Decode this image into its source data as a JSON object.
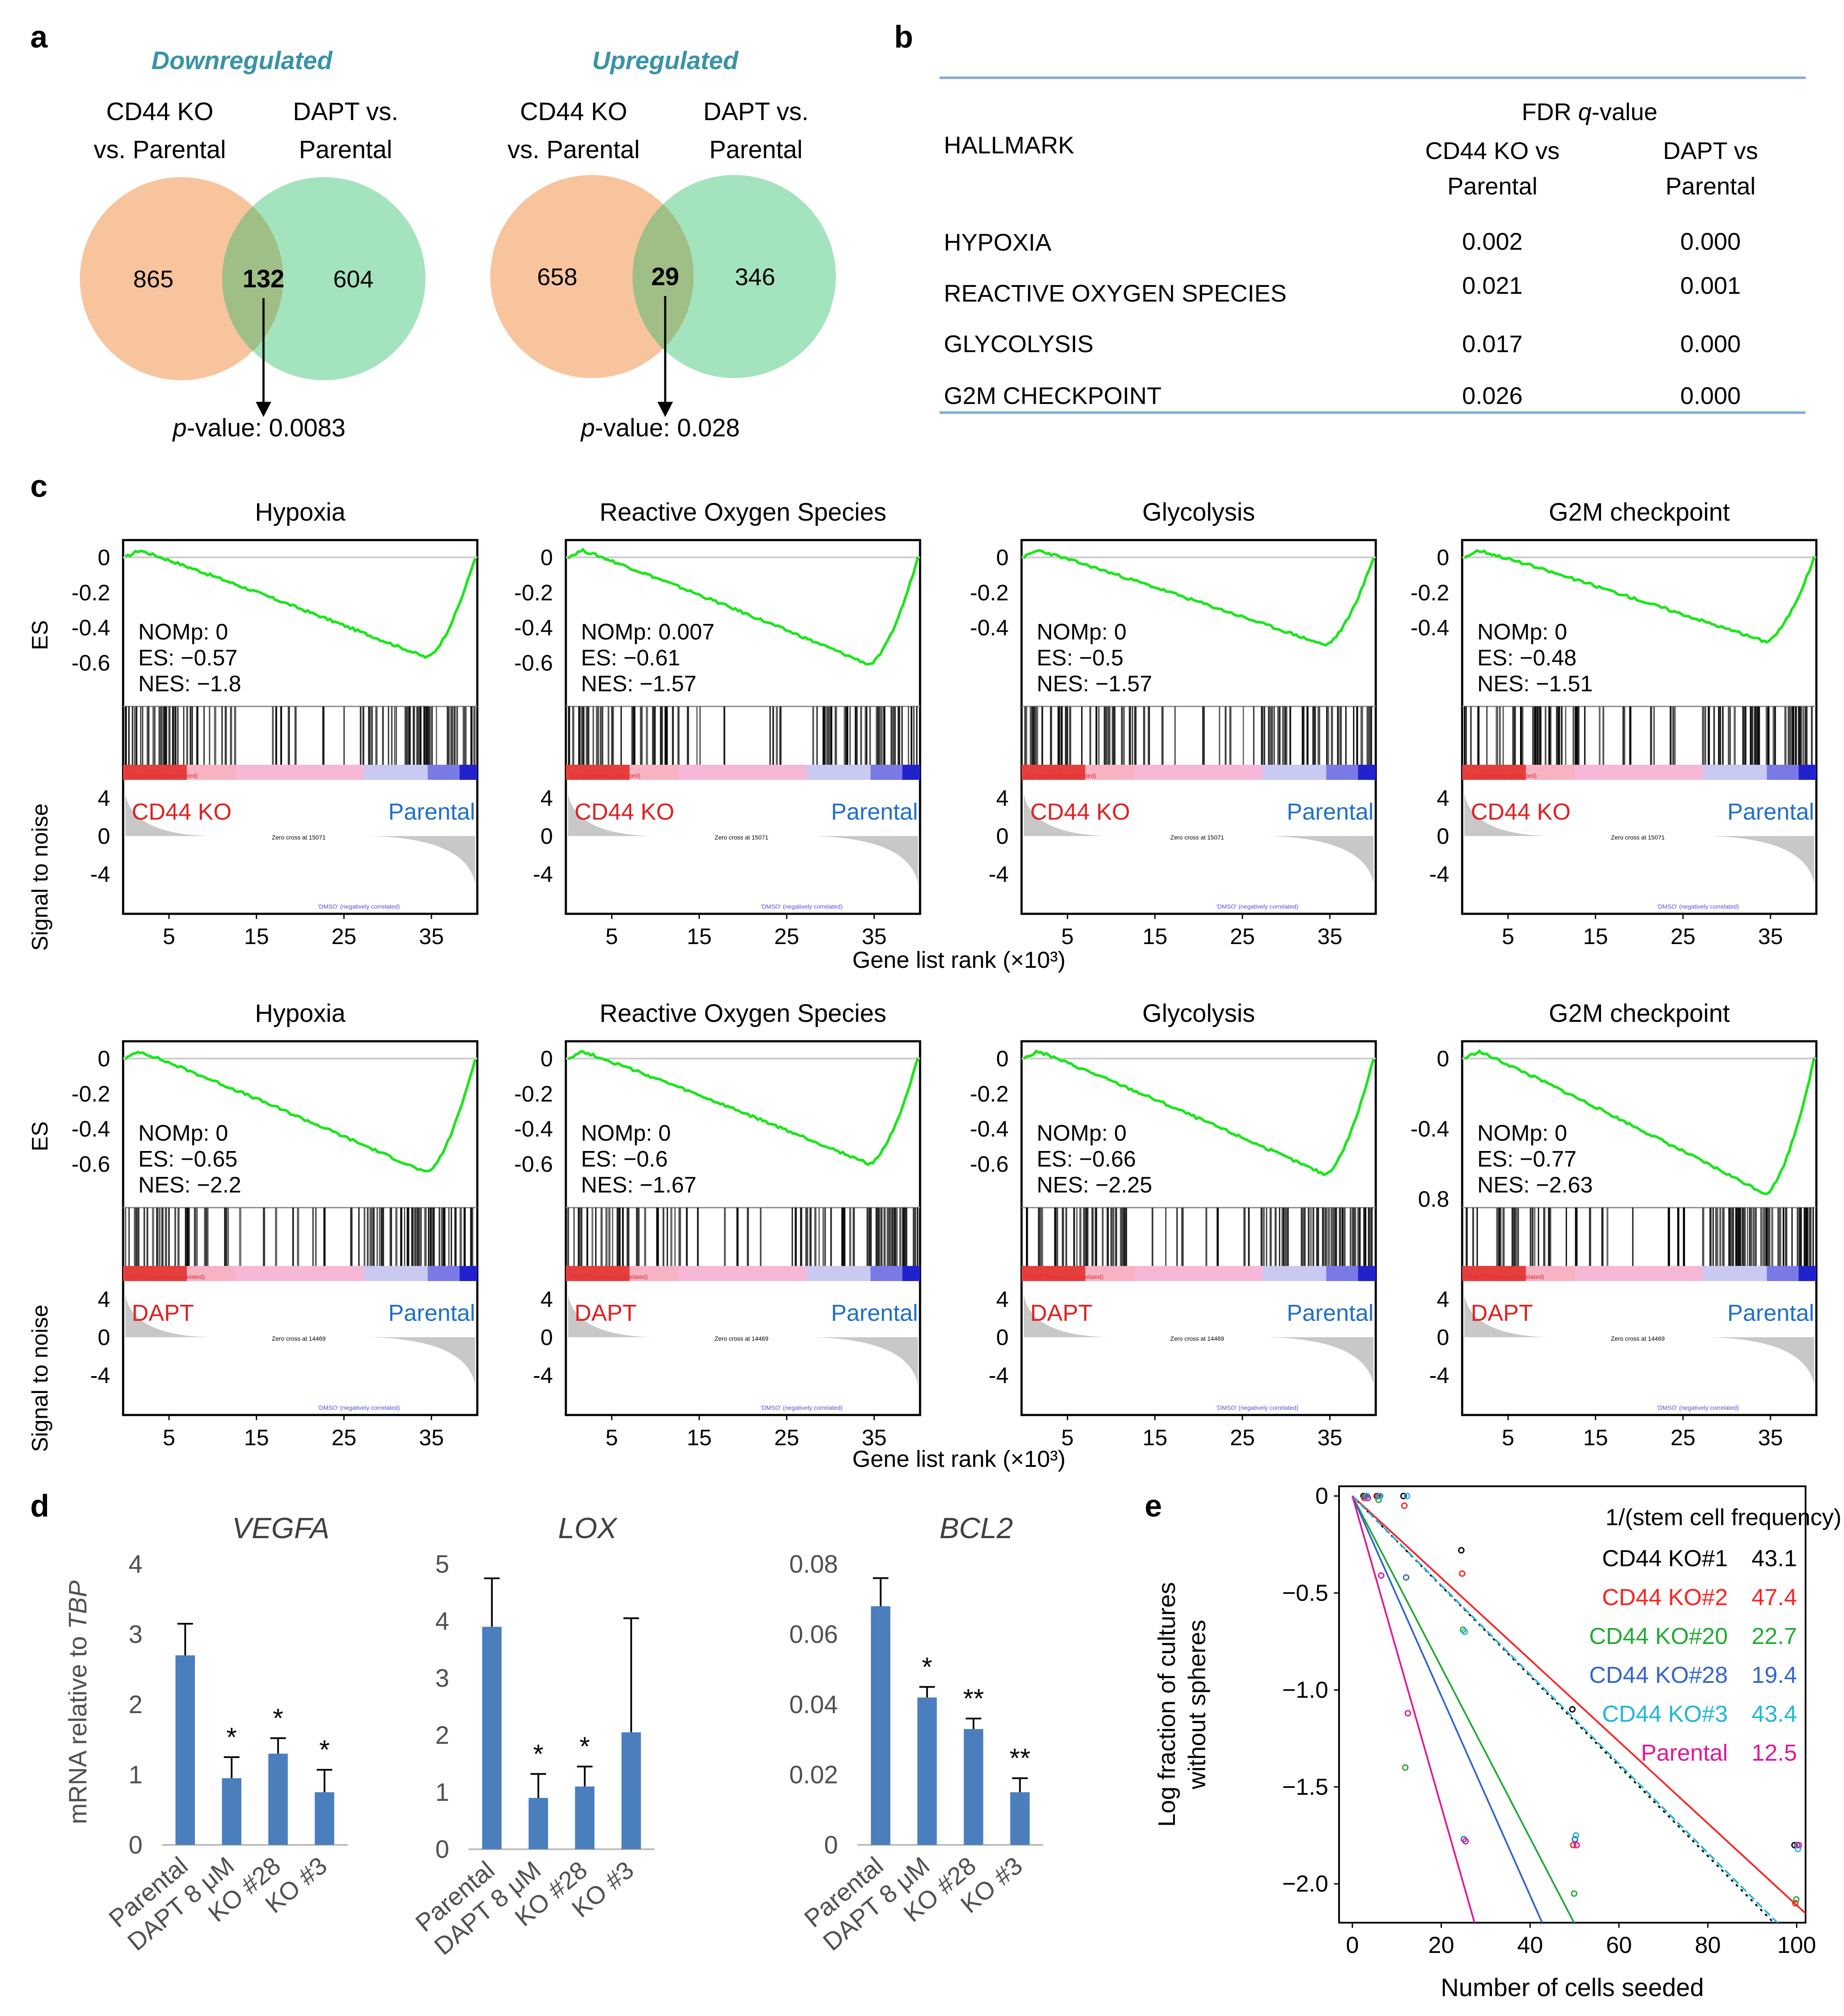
{
  "panel_labels": {
    "a": "a",
    "b": "b",
    "c": "c",
    "d": "d",
    "e": "e"
  },
  "venns": [
    {
      "title": "Downregulated",
      "left_label": [
        "CD44 KO",
        "vs. Parental"
      ],
      "right_label": [
        "DAPT vs.",
        "Parental"
      ],
      "left_only": "865",
      "overlap": "132",
      "right_only": "604",
      "p_prefix": "p",
      "p_text": "-value: 0.0083"
    },
    {
      "title": "Upregulated",
      "left_label": [
        "CD44 KO",
        "vs. Parental"
      ],
      "right_label": [
        "DAPT vs.",
        "Parental"
      ],
      "left_only": "658",
      "overlap": "29",
      "right_only": "346",
      "p_prefix": "p",
      "p_text": "-value: 0.028"
    }
  ],
  "hallmark_table": {
    "fdr_header_pre": "FDR ",
    "fdr_header_q": "q",
    "fdr_header_post": "-value",
    "hallmark_header": "HALLMARK",
    "col1_header": [
      "CD44 KO vs",
      "Parental"
    ],
    "col2_header": [
      "DAPT vs",
      "Parental"
    ],
    "rows": [
      {
        "name": "HYPOXIA",
        "v1": "0.002",
        "v2": "0.000"
      },
      {
        "name": "REACTIVE OXYGEN SPECIES",
        "v1": "0.021",
        "v2": "0.001"
      },
      {
        "name": "GLYCOLYSIS",
        "v1": "0.017",
        "v2": "0.000"
      },
      {
        "name": "G2M CHECKPOINT",
        "v1": "0.026",
        "v2": "0.000"
      }
    ]
  },
  "gsea": {
    "es_axis_label": "ES",
    "stn_axis_label": "Signal to noise",
    "xlabel": "Gene list rank (×10³)",
    "x_ticks": [
      "5",
      "15",
      "25",
      "35"
    ],
    "stn_ticks": [
      "4",
      "0",
      "-4"
    ],
    "pos_note_ko": "'KO' (positively correlated)",
    "pos_note_dapt": "'DAPT' (positively correlated)",
    "neg_note": "'DMSO' (negatively correlated)",
    "zero_note_ko": "Zero cross at 15071",
    "zero_note_dapt": "Zero cross at 14469",
    "right_group": "Parental",
    "rows": [
      {
        "left_group": "CD44 KO",
        "plots": [
          {
            "title": "Hypoxia",
            "nom": "NOMp: 0",
            "es": "ES: −0.57",
            "nes": "NES: −1.8",
            "es_ticks": [
              "0",
              "-0.2",
              "-0.4",
              "-0.6"
            ],
            "es_min": -0.57
          },
          {
            "title": "Reactive Oxygen Species",
            "nom": "NOMp: 0.007",
            "es": "ES: −0.61",
            "nes": "NES: −1.57",
            "es_ticks": [
              "0",
              "-0.2",
              "-0.4",
              "-0.6"
            ],
            "es_min": -0.61
          },
          {
            "title": "Glycolysis",
            "nom": "NOMp: 0",
            "es": "ES: −0.5",
            "nes": "NES: −1.57",
            "es_ticks": [
              "0",
              "-0.2",
              "-0.4"
            ],
            "es_min": -0.5
          },
          {
            "title": "G2M checkpoint",
            "nom": "NOMp: 0",
            "es": "ES: −0.48",
            "nes": "NES: −1.51",
            "es_ticks": [
              "0",
              "-0.2",
              "-0.4"
            ],
            "es_min": -0.48
          }
        ]
      },
      {
        "left_group": "DAPT",
        "plots": [
          {
            "title": "Hypoxia",
            "nom": "NOMp: 0",
            "es": "ES: −0.65",
            "nes": "NES: −2.2",
            "es_ticks": [
              "0",
              "-0.2",
              "-0.4",
              "-0.6"
            ],
            "es_min": -0.65
          },
          {
            "title": "Reactive Oxygen Species",
            "nom": "NOMp: 0",
            "es": "ES: −0.6",
            "nes": "NES: −1.67",
            "es_ticks": [
              "0",
              "-0.2",
              "-0.4",
              "-0.6"
            ],
            "es_min": -0.6
          },
          {
            "title": "Glycolysis",
            "nom": "NOMp: 0",
            "es": "ES: −0.66",
            "nes": "NES: −2.25",
            "es_ticks": [
              "0",
              "-0.2",
              "-0.4",
              "-0.6"
            ],
            "es_min": -0.66
          },
          {
            "title": "G2M checkpoint",
            "nom": "NOMp: 0",
            "es": "ES: −0.77",
            "nes": "NES: −2.63",
            "es_ticks": [
              "0",
              "-0.4",
              "0.8"
            ],
            "es_min": -0.77
          }
        ]
      }
    ]
  },
  "chart_data": [
    {
      "type": "bar",
      "title": "VEGFA",
      "ylabel_pre": "mRNA relative to ",
      "ylabel_gene": "TBP",
      "categories": [
        "Parental",
        "DAPT 8 μM",
        "KO #28",
        "KO #3"
      ],
      "values": [
        2.7,
        0.95,
        1.3,
        0.75
      ],
      "errors": [
        0.45,
        0.3,
        0.22,
        0.32
      ],
      "significance": [
        "",
        "*",
        "*",
        "*"
      ],
      "y_ticks": [
        "0",
        "1",
        "2",
        "3",
        "4"
      ],
      "ylim": [
        0,
        4
      ]
    },
    {
      "type": "bar",
      "title": "LOX",
      "categories": [
        "Parental",
        "DAPT 8 μM",
        "KO #28",
        "KO #3"
      ],
      "values": [
        3.9,
        0.9,
        1.1,
        2.05
      ],
      "errors": [
        0.85,
        0.42,
        0.35,
        2.0
      ],
      "significance": [
        "",
        "*",
        "*",
        ""
      ],
      "y_ticks": [
        "0",
        "1",
        "2",
        "3",
        "4",
        "5"
      ],
      "ylim": [
        0,
        5
      ]
    },
    {
      "type": "bar",
      "title": "BCL2",
      "categories": [
        "Parental",
        "DAPT 8 μM",
        "KO #28",
        "KO #3"
      ],
      "values": [
        0.068,
        0.042,
        0.033,
        0.015
      ],
      "errors": [
        0.008,
        0.003,
        0.003,
        0.004
      ],
      "significance": [
        "",
        "*",
        "**",
        "**"
      ],
      "y_ticks": [
        "0",
        "0.02",
        "0.04",
        "0.06",
        "0.08"
      ],
      "ylim": [
        0,
        0.08
      ]
    },
    {
      "type": "scatter",
      "title": "1/(stem cell frequency)",
      "xlabel": "Number of cells seeded",
      "ylabel": [
        "Log fraction of cultures",
        "without spheres"
      ],
      "x_ticks": [
        "0",
        "20",
        "40",
        "60",
        "80",
        "100"
      ],
      "y_ticks": [
        "0",
        "−0.5",
        "−1.0",
        "−1.5",
        "−2.0"
      ],
      "xlim": [
        -3,
        102
      ],
      "ylim": [
        -2.2,
        0.05
      ],
      "series": [
        {
          "name": "CD44 KO#1",
          "value": "43.1",
          "color": "#000000",
          "slope": -0.0232,
          "points": [
            [
              3,
              0
            ],
            [
              6,
              0
            ],
            [
              12,
              0
            ],
            [
              25,
              -0.28
            ],
            [
              50,
              -1.1
            ],
            [
              100,
              -1.8
            ]
          ]
        },
        {
          "name": "CD44 KO#2",
          "value": "47.4",
          "color": "#ff2222",
          "slope": -0.0211,
          "points": [
            [
              3,
              -0.01
            ],
            [
              6,
              0
            ],
            [
              12,
              -0.05
            ],
            [
              25,
              -0.4
            ],
            [
              50,
              -1.8
            ],
            [
              100,
              -2.1
            ]
          ]
        },
        {
          "name": "CD44 KO#20",
          "value": "22.7",
          "color": "#22aa33",
          "slope": -0.0441,
          "points": [
            [
              3,
              0
            ],
            [
              6,
              -0.02
            ],
            [
              12,
              -1.4
            ],
            [
              25,
              -0.69
            ],
            [
              50,
              -2.05
            ],
            [
              100,
              -2.08
            ]
          ]
        },
        {
          "name": "CD44 KO#28",
          "value": "19.4",
          "color": "#3366cc",
          "slope": -0.0515,
          "points": [
            [
              3,
              0
            ],
            [
              6,
              0
            ],
            [
              12,
              -0.42
            ],
            [
              25,
              -1.77
            ],
            [
              50,
              -1.77
            ],
            [
              100,
              -1.8
            ]
          ]
        },
        {
          "name": "CD44 KO#3",
          "value": "43.4",
          "color": "#22b5d8",
          "slope": -0.023,
          "points": [
            [
              3,
              0
            ],
            [
              6,
              0
            ],
            [
              12,
              0
            ],
            [
              25,
              -0.7
            ],
            [
              50,
              -1.75
            ],
            [
              100,
              -1.82
            ]
          ]
        },
        {
          "name": "Parental",
          "value": "12.5",
          "color": "#e0189a",
          "slope": -0.08,
          "points": [
            [
              3,
              -0.01
            ],
            [
              6,
              -0.41
            ],
            [
              12,
              -1.12
            ],
            [
              25,
              -1.78
            ],
            [
              50,
              -1.8
            ],
            [
              100,
              -1.8
            ]
          ]
        }
      ]
    }
  ]
}
